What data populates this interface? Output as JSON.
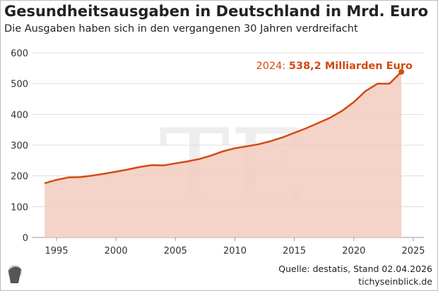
{
  "title": "Gesundheitsausgaben in Deutschland in Mrd. Euro",
  "subtitle": "Die Ausgaben haben sich in den vergangenen 30 Jahren verdreifacht",
  "source": "Quelle: destatis, Stand 02.04.2026",
  "site": "tichyseinblick.de",
  "watermark": "TE",
  "colors": {
    "line": "#d24a12",
    "area": "#f2cbbf",
    "grid": "#dddddd",
    "annotation": "#d24a12"
  },
  "chart_data": {
    "type": "area",
    "title": "Gesundheitsausgaben in Deutschland in Mrd. Euro",
    "xlabel": "",
    "ylabel": "",
    "xlim": [
      1994,
      2025
    ],
    "ylim": [
      0,
      600
    ],
    "grid": true,
    "xticks": [
      1995,
      2000,
      2005,
      2010,
      2015,
      2020,
      2025
    ],
    "yticks": [
      0,
      100,
      200,
      300,
      400,
      500,
      600
    ],
    "x": [
      1994,
      1995,
      1996,
      1997,
      1998,
      1999,
      2000,
      2001,
      2002,
      2003,
      2004,
      2005,
      2006,
      2007,
      2008,
      2009,
      2010,
      2011,
      2012,
      2013,
      2014,
      2015,
      2016,
      2017,
      2018,
      2019,
      2020,
      2021,
      2022,
      2023,
      2024
    ],
    "values": [
      176,
      187,
      195,
      196,
      201,
      207,
      214,
      221,
      229,
      235,
      234,
      241,
      247,
      255,
      266,
      280,
      290,
      296,
      303,
      313,
      325,
      340,
      355,
      372,
      389,
      411,
      440,
      476,
      500,
      500,
      538.2
    ],
    "annotation": {
      "prefix": "2024: ",
      "value_text": "538,2 Milliarden Euro"
    }
  }
}
